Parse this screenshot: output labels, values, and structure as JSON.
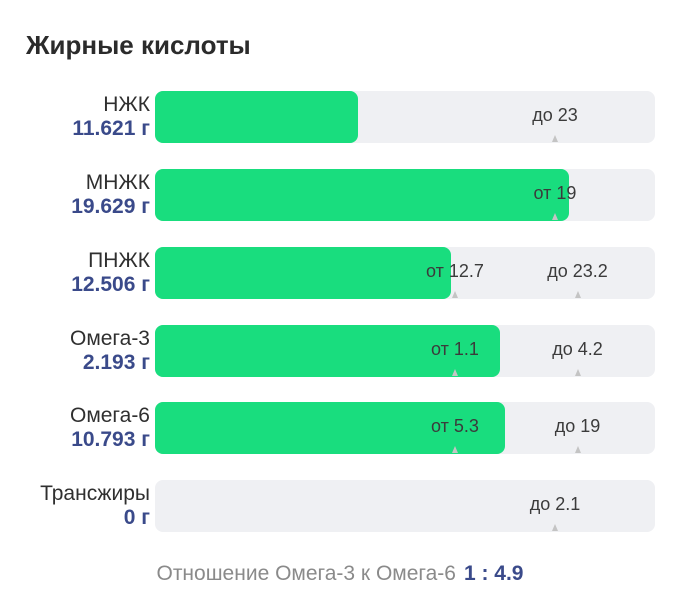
{
  "title": "Жирные кислоты",
  "rows": [
    {
      "name": "НЖК",
      "value": "11.621 г",
      "fill": 0.405,
      "marks": [
        {
          "text": "до 23",
          "pos": 0.8
        }
      ]
    },
    {
      "name": "МНЖК",
      "value": "19.629 г",
      "fill": 0.827,
      "marks": [
        {
          "text": "от 19",
          "pos": 0.8
        }
      ]
    },
    {
      "name": "ПНЖК",
      "value": "12.506 г",
      "fill": 0.592,
      "marks": [
        {
          "text": "от 12.7",
          "pos": 0.6
        },
        {
          "text": "до 23.2",
          "pos": 0.845
        }
      ]
    },
    {
      "name": "Омега-3",
      "value": "2.193 г",
      "fill": 0.69,
      "marks": [
        {
          "text": "от 1.1",
          "pos": 0.6
        },
        {
          "text": "до 4.2",
          "pos": 0.845
        }
      ]
    },
    {
      "name": "Омега-6",
      "value": "10.793 г",
      "fill": 0.7,
      "marks": [
        {
          "text": "от 5.3",
          "pos": 0.6
        },
        {
          "text": "до 19",
          "pos": 0.845
        }
      ]
    },
    {
      "name": "Трансжиры",
      "value": "0 г",
      "fill": 0,
      "marks": [
        {
          "text": "до 2.1",
          "pos": 0.8
        }
      ]
    }
  ],
  "footer": {
    "label": "Отношение Омега-3 к Омега-6",
    "ratio": "1 : 4.9"
  },
  "colors": {
    "fill": "#19dd7e",
    "track": "#eff0f3",
    "value_text": "#3a4a8a"
  }
}
